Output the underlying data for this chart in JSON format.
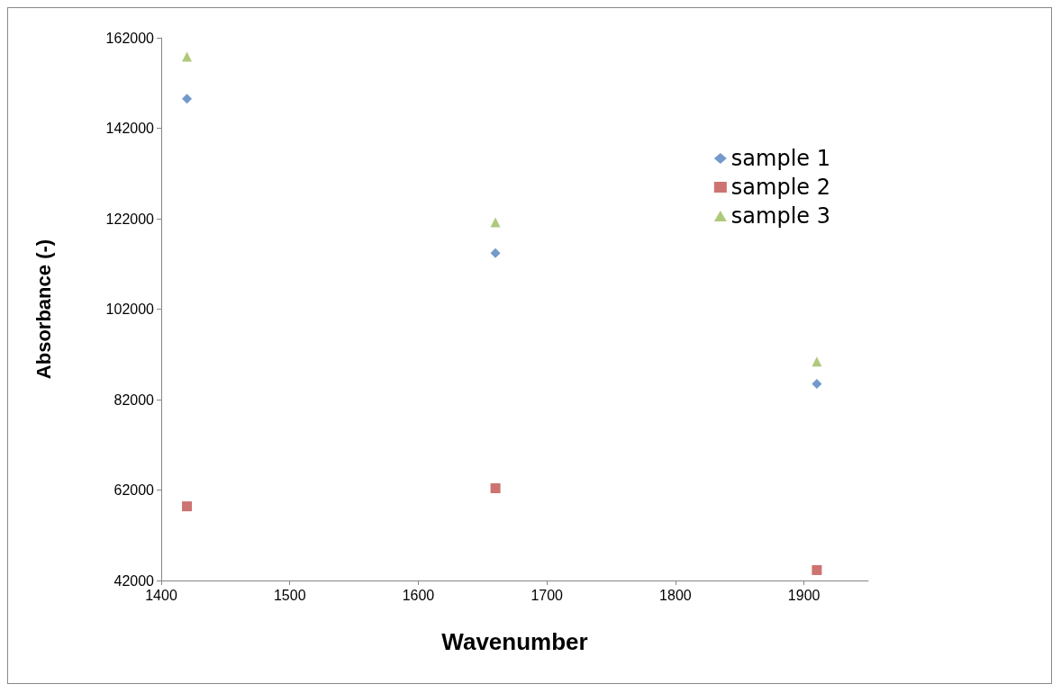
{
  "chart_data": {
    "type": "scatter",
    "xlabel": "Wavenumber",
    "ylabel": "Absorbance (-)",
    "x": [
      1420,
      1660,
      1910
    ],
    "series": [
      {
        "name": "sample 1",
        "color": "#4f81bd",
        "marker": "diamond",
        "values": [
          148500,
          114400,
          85500
        ]
      },
      {
        "name": "sample 2",
        "color": "#c0504d",
        "marker": "square",
        "values": [
          58400,
          62400,
          44300
        ]
      },
      {
        "name": "sample 3",
        "color": "#9bbb59",
        "marker": "triangle",
        "values": [
          157800,
          121200,
          90400
        ]
      }
    ],
    "xlim": [
      1400,
      1950
    ],
    "xticks": [
      1400,
      1500,
      1600,
      1700,
      1800,
      1900
    ],
    "ylim": [
      42000,
      162000
    ],
    "yticks": [
      42000,
      62000,
      82000,
      102000,
      122000,
      142000,
      162000
    ],
    "grid": false,
    "legend": "top right"
  }
}
